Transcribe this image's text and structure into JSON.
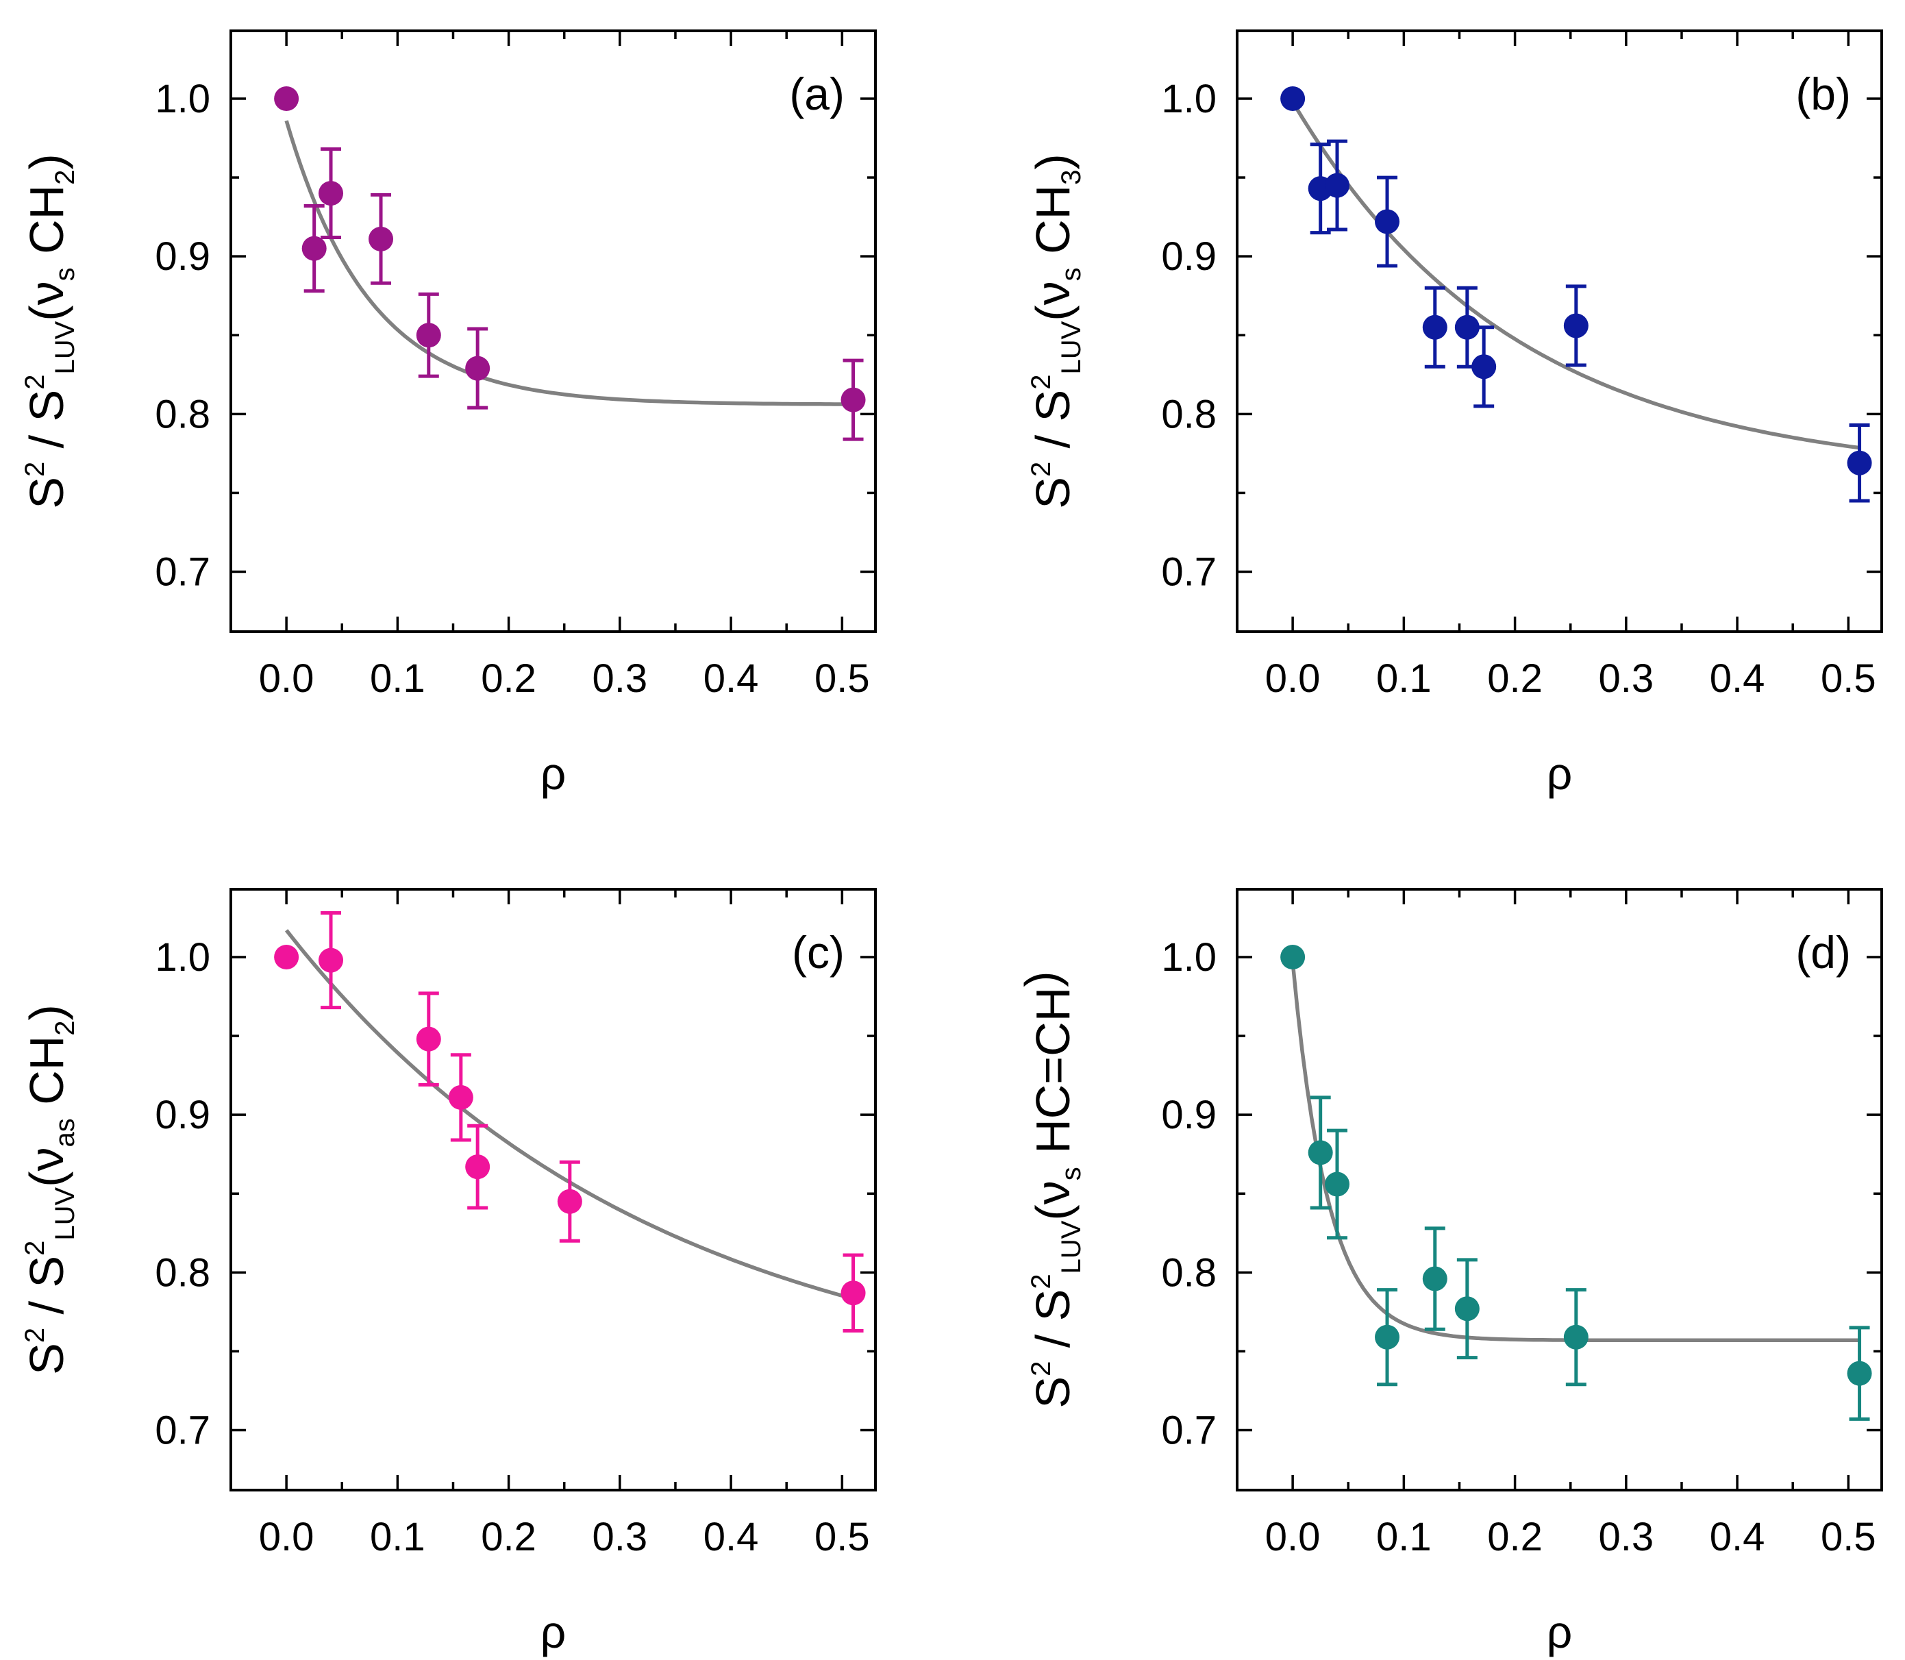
{
  "chart_data": [
    {
      "type": "scatter",
      "panel_label": "(a)",
      "xlabel": "ρ",
      "ylabel": {
        "s1": "S",
        "sup1": "2",
        "slash": " / S",
        "sup2": "2",
        "sub2": "LUV",
        "paren_open": "(",
        "nu": "ν",
        "sub3": "s",
        "group": " CH",
        "sub4": "2",
        "paren_close": ")"
      },
      "xlim": [
        -0.05,
        0.53
      ],
      "ylim": [
        0.662,
        1.043
      ],
      "xticks": [
        "0.0",
        "0.1",
        "0.2",
        "0.3",
        "0.4",
        "0.5"
      ],
      "yticks": [
        "0.7",
        "0.8",
        "0.9",
        "1.0"
      ],
      "color": "#9b1489",
      "points": [
        {
          "x": 0.0,
          "y": 1.0,
          "err": null
        },
        {
          "x": 0.025,
          "y": 0.905,
          "err": 0.027
        },
        {
          "x": 0.04,
          "y": 0.94,
          "err": 0.028
        },
        {
          "x": 0.085,
          "y": 0.911,
          "err": 0.028
        },
        {
          "x": 0.128,
          "y": 0.85,
          "err": 0.026
        },
        {
          "x": 0.172,
          "y": 0.829,
          "err": 0.025
        },
        {
          "x": 0.51,
          "y": 0.809,
          "err": 0.025
        }
      ],
      "fit": {
        "y0": 0.806,
        "A": 0.18,
        "t": 0.075,
        "x_start": 0.0,
        "x_end": 0.51
      }
    },
    {
      "type": "scatter",
      "panel_label": "(b)",
      "xlabel": "ρ",
      "ylabel": {
        "s1": "S",
        "sup1": "2",
        "slash": " / S",
        "sup2": "2",
        "sub2": "LUV",
        "paren_open": "(",
        "nu": "ν",
        "sub3": "s",
        "group": " CH",
        "sub4": "3",
        "paren_close": ")"
      },
      "xlim": [
        -0.05,
        0.53
      ],
      "ylim": [
        0.662,
        1.043
      ],
      "xticks": [
        "0.0",
        "0.1",
        "0.2",
        "0.3",
        "0.4",
        "0.5"
      ],
      "yticks": [
        "0.7",
        "0.8",
        "0.9",
        "1.0"
      ],
      "color": "#0d1b9e",
      "points": [
        {
          "x": 0.0,
          "y": 1.0,
          "err": null
        },
        {
          "x": 0.025,
          "y": 0.943,
          "err": 0.028
        },
        {
          "x": 0.04,
          "y": 0.945,
          "err": 0.028
        },
        {
          "x": 0.085,
          "y": 0.922,
          "err": 0.028
        },
        {
          "x": 0.128,
          "y": 0.855,
          "err": 0.025
        },
        {
          "x": 0.157,
          "y": 0.855,
          "err": 0.025
        },
        {
          "x": 0.172,
          "y": 0.83,
          "err": 0.025
        },
        {
          "x": 0.255,
          "y": 0.856,
          "err": 0.025
        },
        {
          "x": 0.51,
          "y": 0.769,
          "err": 0.024
        }
      ],
      "fit": {
        "y0": 0.76,
        "A": 0.238,
        "t": 0.2,
        "x_start": 0.0,
        "x_end": 0.51
      }
    },
    {
      "type": "scatter",
      "panel_label": "(c)",
      "xlabel": "ρ",
      "ylabel": {
        "s1": "S",
        "sup1": "2",
        "slash": " / S",
        "sup2": "2",
        "sub2": "LUV",
        "paren_open": "(",
        "nu": "ν",
        "sub3": "as",
        "group": " CH",
        "sub4": "2",
        "paren_close": ")"
      },
      "xlim": [
        -0.05,
        0.53
      ],
      "ylim": [
        0.662,
        1.043
      ],
      "xticks": [
        "0.0",
        "0.1",
        "0.2",
        "0.3",
        "0.4",
        "0.5"
      ],
      "yticks": [
        "0.7",
        "0.8",
        "0.9",
        "1.0"
      ],
      "color": "#f0149b",
      "points": [
        {
          "x": 0.0,
          "y": 1.0,
          "err": null
        },
        {
          "x": 0.04,
          "y": 0.998,
          "err": 0.03
        },
        {
          "x": 0.128,
          "y": 0.948,
          "err": 0.029
        },
        {
          "x": 0.157,
          "y": 0.911,
          "err": 0.027
        },
        {
          "x": 0.172,
          "y": 0.867,
          "err": 0.026
        },
        {
          "x": 0.255,
          "y": 0.845,
          "err": 0.025
        },
        {
          "x": 0.51,
          "y": 0.787,
          "err": 0.024
        }
      ],
      "fit": {
        "y0": 0.72,
        "A": 0.297,
        "t": 0.33,
        "x_start": 0.0,
        "x_end": 0.51
      }
    },
    {
      "type": "scatter",
      "panel_label": "(d)",
      "xlabel": "ρ",
      "ylabel": {
        "s1": "S",
        "sup1": "2",
        "slash": " / S",
        "sup2": "2",
        "sub2": "LUV",
        "paren_open": "(",
        "nu": "ν",
        "sub3": "s",
        "group": " HC=CH",
        "sub4": "",
        "paren_close": ")"
      },
      "xlim": [
        -0.05,
        0.53
      ],
      "ylim": [
        0.662,
        1.043
      ],
      "xticks": [
        "0.0",
        "0.1",
        "0.2",
        "0.3",
        "0.4",
        "0.5"
      ],
      "yticks": [
        "0.7",
        "0.8",
        "0.9",
        "1.0"
      ],
      "color": "#16867f",
      "points": [
        {
          "x": 0.0,
          "y": 1.0,
          "err": null
        },
        {
          "x": 0.025,
          "y": 0.876,
          "err": 0.035
        },
        {
          "x": 0.04,
          "y": 0.856,
          "err": 0.034
        },
        {
          "x": 0.085,
          "y": 0.759,
          "err": 0.03
        },
        {
          "x": 0.128,
          "y": 0.796,
          "err": 0.032
        },
        {
          "x": 0.157,
          "y": 0.777,
          "err": 0.031
        },
        {
          "x": 0.255,
          "y": 0.759,
          "err": 0.03
        },
        {
          "x": 0.51,
          "y": 0.736,
          "err": 0.029
        }
      ],
      "fit": {
        "y0": 0.757,
        "A": 0.24,
        "t": 0.032,
        "x_start": 0.0,
        "x_end": 0.51
      }
    }
  ]
}
